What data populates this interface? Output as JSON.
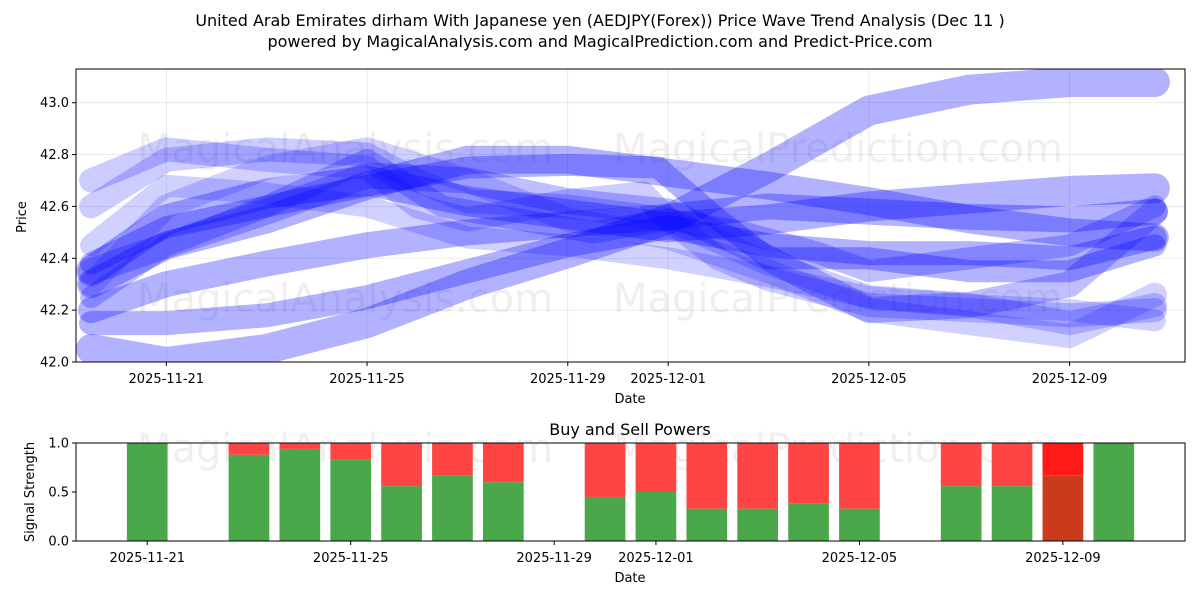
{
  "chart_data": [
    {
      "type": "area",
      "title_lines": [
        "United Arab Emirates dirham With Japanese yen (AEDJPY(Forex)) Price Wave Trend Analysis (Dec 11 )",
        "powered by MagicalAnalysis.com and MagicalPrediction.com and Predict-Price.com"
      ],
      "xlabel": "Date",
      "ylabel": "Price",
      "x_start": "2025-11-19",
      "xlim_days": [
        0.2,
        22.3
      ],
      "ylim": [
        42.0,
        43.13
      ],
      "yticks": [
        42.0,
        42.2,
        42.4,
        42.6,
        42.8,
        43.0
      ],
      "ytick_labels": [
        "42.0",
        "42.2",
        "42.4",
        "42.6",
        "42.8",
        "43.0"
      ],
      "xticks_days": [
        2,
        6,
        10,
        12,
        16,
        20
      ],
      "xtick_labels": [
        "2025-11-21",
        "2025-11-25",
        "2025-11-29",
        "2025-12-01",
        "2025-12-05",
        "2025-12-09"
      ],
      "color": "#0000ff",
      "bands": [
        {
          "name": "wave-1",
          "opacity": 0.3,
          "width": 30,
          "points": [
            [
              0.5,
              42.05
            ],
            [
              2,
              42.0
            ],
            [
              4,
              42.05
            ],
            [
              6,
              42.15
            ],
            [
              8,
              42.3
            ],
            [
              10,
              42.42
            ],
            [
              12,
              42.55
            ],
            [
              14,
              42.75
            ],
            [
              16,
              42.97
            ],
            [
              18,
              43.05
            ],
            [
              20,
              43.08
            ],
            [
              21.7,
              43.08
            ]
          ]
        },
        {
          "name": "wave-2",
          "opacity": 0.3,
          "width": 30,
          "points": [
            [
              0.5,
              42.35
            ],
            [
              2,
              42.55
            ],
            [
              4,
              42.65
            ],
            [
              6,
              42.7
            ],
            [
              8,
              42.62
            ],
            [
              10,
              42.57
            ],
            [
              12,
              42.52
            ],
            [
              14,
              42.55
            ],
            [
              16,
              42.6
            ],
            [
              18,
              42.63
            ],
            [
              20,
              42.66
            ],
            [
              21.7,
              42.67
            ]
          ]
        },
        {
          "name": "wave-3",
          "opacity": 0.3,
          "width": 28,
          "points": [
            [
              0.5,
              42.3
            ],
            [
              2,
              42.45
            ],
            [
              4,
              42.55
            ],
            [
              6,
              42.68
            ],
            [
              8,
              42.78
            ],
            [
              10,
              42.78
            ],
            [
              12,
              42.73
            ],
            [
              14,
              42.68
            ],
            [
              16,
              42.62
            ],
            [
              18,
              42.55
            ],
            [
              20,
              42.5
            ],
            [
              21.7,
              42.48
            ]
          ]
        },
        {
          "name": "wave-4",
          "opacity": 0.3,
          "width": 26,
          "points": [
            [
              0.5,
              42.2
            ],
            [
              2,
              42.3
            ],
            [
              4,
              42.38
            ],
            [
              6,
              42.45
            ],
            [
              8,
              42.5
            ],
            [
              10,
              42.53
            ],
            [
              12,
              42.56
            ],
            [
              14,
              42.6
            ],
            [
              16,
              42.58
            ],
            [
              18,
              42.56
            ],
            [
              20,
              42.55
            ],
            [
              21.7,
              42.58
            ]
          ]
        },
        {
          "name": "wave-5",
          "opacity": 0.25,
          "width": 26,
          "points": [
            [
              0.5,
              42.35
            ],
            [
              2,
              42.45
            ],
            [
              4,
              42.58
            ],
            [
              6,
              42.72
            ],
            [
              8,
              42.7
            ],
            [
              10,
              42.62
            ],
            [
              12,
              42.58
            ],
            [
              13.5,
              42.45
            ],
            [
              15,
              42.3
            ],
            [
              16,
              42.2
            ],
            [
              18,
              42.22
            ],
            [
              20,
              42.3
            ],
            [
              21.7,
              42.58
            ]
          ]
        },
        {
          "name": "wave-6",
          "opacity": 0.3,
          "width": 24,
          "points": [
            [
              0.5,
              42.15
            ],
            [
              2,
              42.15
            ],
            [
              4,
              42.18
            ],
            [
              6,
              42.25
            ],
            [
              8,
              42.35
            ],
            [
              10,
              42.45
            ],
            [
              12,
              42.52
            ],
            [
              14,
              42.45
            ],
            [
              16,
              42.42
            ],
            [
              18,
              42.42
            ],
            [
              20,
              42.4
            ],
            [
              21.7,
              42.48
            ]
          ]
        },
        {
          "name": "wave-7",
          "opacity": 0.2,
          "width": 24,
          "points": [
            [
              0.5,
              42.7
            ],
            [
              2,
              42.82
            ],
            [
              4,
              42.78
            ],
            [
              6,
              42.75
            ],
            [
              7,
              42.6
            ],
            [
              8,
              42.55
            ],
            [
              10,
              42.62
            ],
            [
              11.5,
              42.65
            ],
            [
              12,
              42.55
            ],
            [
              13,
              42.4
            ],
            [
              14,
              42.32
            ],
            [
              16,
              42.22
            ],
            [
              18,
              42.2
            ],
            [
              20,
              42.18
            ],
            [
              21.7,
              42.2
            ]
          ]
        },
        {
          "name": "wave-8",
          "opacity": 0.2,
          "width": 24,
          "points": [
            [
              0.5,
              42.6
            ],
            [
              2,
              42.78
            ],
            [
              4,
              42.82
            ],
            [
              6,
              42.8
            ],
            [
              7,
              42.7
            ],
            [
              8,
              42.62
            ],
            [
              10,
              42.6
            ],
            [
              12,
              42.55
            ],
            [
              14,
              42.38
            ],
            [
              16,
              42.25
            ],
            [
              18,
              42.22
            ],
            [
              20,
              42.15
            ],
            [
              21.7,
              42.22
            ]
          ]
        },
        {
          "name": "wave-9",
          "opacity": 0.18,
          "width": 24,
          "points": [
            [
              0.5,
              42.3
            ],
            [
              2,
              42.6
            ],
            [
              4,
              42.75
            ],
            [
              6,
              42.82
            ],
            [
              8,
              42.7
            ],
            [
              10,
              42.55
            ],
            [
              12,
              42.48
            ],
            [
              14,
              42.35
            ],
            [
              16,
              42.2
            ],
            [
              18,
              42.15
            ],
            [
              20,
              42.1
            ],
            [
              21.7,
              42.26
            ]
          ]
        },
        {
          "name": "wave-10",
          "opacity": 0.18,
          "width": 22,
          "points": [
            [
              0.5,
              42.45
            ],
            [
              2,
              42.68
            ],
            [
              4,
              42.65
            ],
            [
              6,
              42.6
            ],
            [
              8,
              42.48
            ],
            [
              10,
              42.45
            ],
            [
              12,
              42.4
            ],
            [
              14,
              42.33
            ],
            [
              16,
              42.25
            ],
            [
              18,
              42.22
            ],
            [
              20,
              42.2
            ],
            [
              21.7,
              42.16
            ]
          ]
        },
        {
          "name": "wave-11",
          "opacity": 0.3,
          "width": 22,
          "points": [
            [
              0.5,
              42.38
            ],
            [
              2,
              42.52
            ],
            [
              4,
              42.6
            ],
            [
              6,
              42.68
            ],
            [
              8,
              42.75
            ],
            [
              10,
              42.76
            ],
            [
              11.8,
              42.75
            ],
            [
              13,
              42.55
            ],
            [
              14,
              42.4
            ],
            [
              16,
              42.4
            ],
            [
              18,
              42.35
            ],
            [
              20,
              42.35
            ],
            [
              21.7,
              42.45
            ]
          ]
        },
        {
          "name": "wave-12",
          "opacity": 0.25,
          "width": 22,
          "points": [
            [
              0.5,
              42.25
            ],
            [
              2,
              42.45
            ],
            [
              4,
              42.6
            ],
            [
              6,
              42.78
            ],
            [
              7.5,
              42.6
            ],
            [
              9,
              42.55
            ],
            [
              10.5,
              42.5
            ],
            [
              12,
              42.55
            ],
            [
              13.5,
              42.5
            ],
            [
              15,
              42.42
            ],
            [
              16,
              42.35
            ],
            [
              18,
              42.4
            ],
            [
              20,
              42.45
            ],
            [
              21.7,
              42.6
            ]
          ]
        }
      ]
    },
    {
      "type": "bar",
      "title": "Buy and Sell Powers",
      "xlabel": "Date",
      "ylabel": "Signal Strength",
      "ylim": [
        0.0,
        1.0
      ],
      "yticks": [
        0.0,
        0.5,
        1.0
      ],
      "ytick_labels": [
        "0.0",
        "0.5",
        "1.0"
      ],
      "xticks_days": [
        2,
        6,
        10,
        12,
        16,
        20
      ],
      "xtick_labels": [
        "2025-11-21",
        "2025-11-25",
        "2025-11-29",
        "2025-12-01",
        "2025-12-05",
        "2025-12-09"
      ],
      "buy_color": "#4aa84a",
      "sell_color": "#ff4444",
      "bars": [
        {
          "day": 2,
          "buy": 1.0,
          "sell": 0.0
        },
        {
          "day": 4,
          "buy": 0.88,
          "sell": 0.12
        },
        {
          "day": 5,
          "buy": 0.94,
          "sell": 0.06
        },
        {
          "day": 6,
          "buy": 0.83,
          "sell": 0.17
        },
        {
          "day": 7,
          "buy": 0.56,
          "sell": 0.44
        },
        {
          "day": 8,
          "buy": 0.67,
          "sell": 0.33
        },
        {
          "day": 9,
          "buy": 0.6,
          "sell": 0.4
        },
        {
          "day": 11,
          "buy": 0.45,
          "sell": 0.55
        },
        {
          "day": 12,
          "buy": 0.5,
          "sell": 0.5
        },
        {
          "day": 13,
          "buy": 0.33,
          "sell": 0.67
        },
        {
          "day": 14,
          "buy": 0.33,
          "sell": 0.67
        },
        {
          "day": 15,
          "buy": 0.38,
          "sell": 0.62
        },
        {
          "day": 16,
          "buy": 0.33,
          "sell": 0.67
        },
        {
          "day": 18,
          "buy": 0.56,
          "sell": 0.44
        },
        {
          "day": 19,
          "buy": 0.56,
          "sell": 0.44
        },
        {
          "day": 20,
          "buy": 0.67,
          "sell": 0.33,
          "highlight": true
        },
        {
          "day": 21,
          "buy": 1.0,
          "sell": 0.0
        }
      ]
    }
  ],
  "watermarks": [
    "MagicalAnalysis.com",
    "MagicalPrediction.com"
  ]
}
